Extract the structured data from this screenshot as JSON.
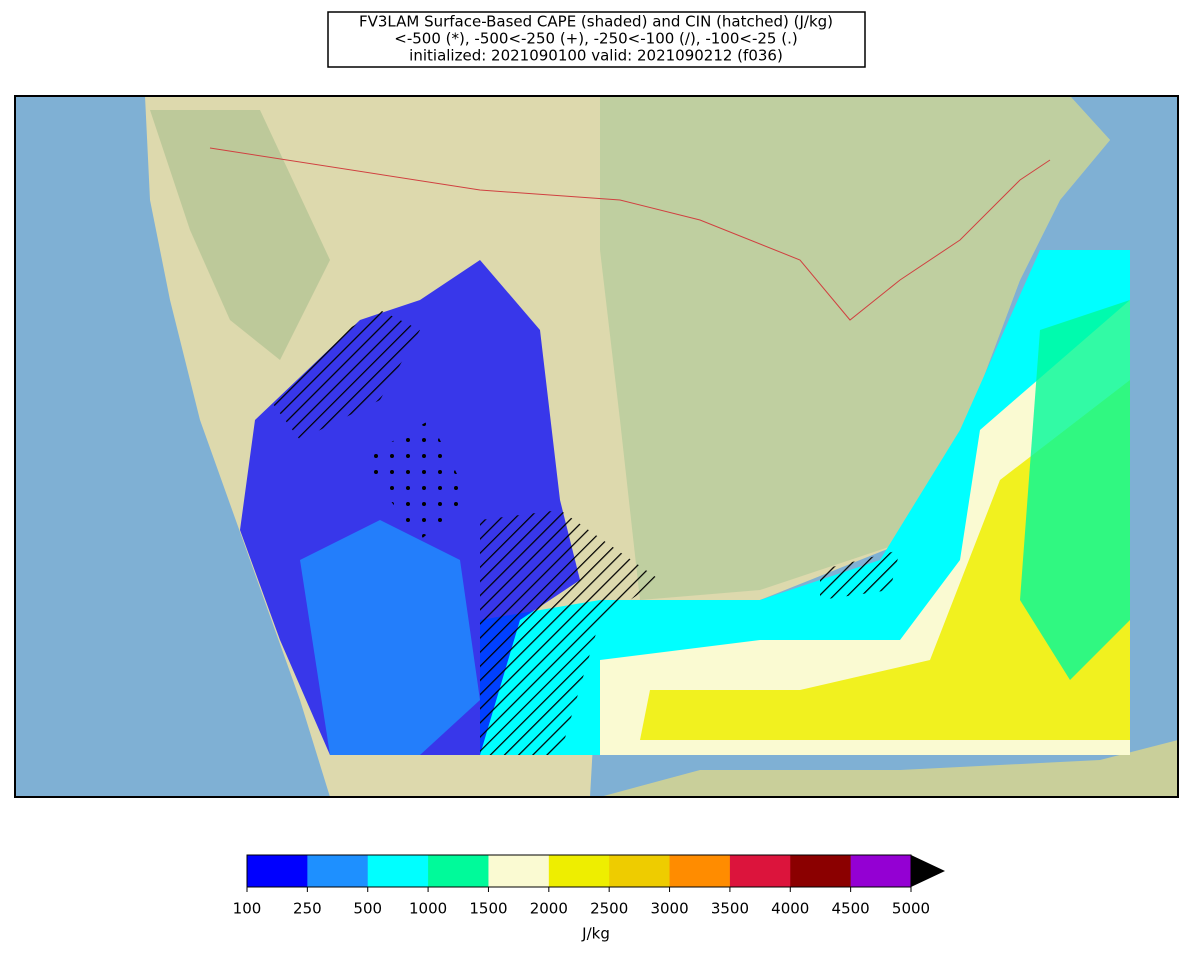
{
  "title": [
    "FV3LAM Surface-Based CAPE (shaded) and CIN (hatched) (J/kg)",
    "<-500 (*), -500<-250 (+), -250<-100 (/), -100<-25 (.)",
    "initialized: 2021090100 valid: 2021090212 (f036)"
  ],
  "colorbar": {
    "levels": [
      100,
      250,
      500,
      1000,
      1500,
      2000,
      2500,
      3000,
      3500,
      4000,
      4500,
      5000
    ],
    "colors": [
      "#0000ff",
      "#1e90ff",
      "#00ffff",
      "#00fa9a",
      "#fafad2",
      "#eeee00",
      "#eecc00",
      "#ff8c00",
      "#dc143c",
      "#8b0000",
      "#9400d3"
    ],
    "extend_color": "#000000",
    "label": "J/kg"
  }
}
